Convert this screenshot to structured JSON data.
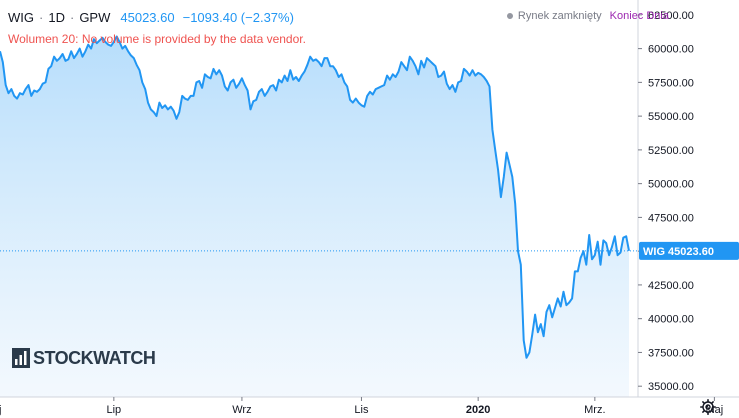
{
  "legend": {
    "symbol": "WIG",
    "interval": "1D",
    "exchange": "GPW",
    "last_value": "45023.60",
    "change": "−1093.40 (−2.37%)"
  },
  "volume_note": "Wolumen 20: No volume is provided by the data vendor.",
  "status": {
    "market": "Rynek zamknięty",
    "mode": "Koniec Dnia"
  },
  "logo": {
    "text": "STOCKWATCH"
  },
  "price_label": {
    "name": "WIG",
    "value": "45023.60"
  },
  "colors": {
    "line": "#2196f3",
    "fill_top": "#b3dcfb",
    "fill_bottom": "#eef6fd",
    "price_label_bg": "#2196f3"
  },
  "chart_data": {
    "type": "area",
    "title": "",
    "xlabel": "",
    "ylabel": "",
    "ylim": [
      34200,
      63600
    ],
    "y_ticks": [
      "35000.00",
      "37500.00",
      "40000.00",
      "42500.00",
      "45000.00",
      "47500.00",
      "50000.00",
      "52500.00",
      "55000.00",
      "57500.00",
      "60000.00",
      "62500.00"
    ],
    "x_tick_labels": [
      "aj",
      "Lip",
      "Wrz",
      "Lis",
      "2020",
      "Mrz.",
      "Maj"
    ],
    "last_value": 45023.6,
    "grid": false,
    "series": [
      {
        "values": [
          59800,
          59000,
          57300,
          56700,
          57000,
          56500,
          56300,
          56700,
          56600,
          57000,
          57300,
          56500,
          56900,
          56800,
          57000,
          57400,
          57500,
          58500,
          58700,
          59400,
          59100,
          59300,
          59600,
          59100,
          59200,
          59800,
          59300,
          59600,
          60000,
          59400,
          59800,
          60300,
          60000,
          60700,
          60400,
          60600,
          60800,
          60500,
          60300,
          60200,
          60500,
          60900,
          60500,
          60000,
          60200,
          59800,
          59500,
          59300,
          58800,
          58400,
          57500,
          57000,
          56000,
          55500,
          55300,
          55000,
          56000,
          55600,
          55800,
          55500,
          55700,
          55400,
          54800,
          55300,
          56500,
          56300,
          56200,
          56500,
          56500,
          57500,
          57600,
          57100,
          58100,
          57900,
          57800,
          58500,
          58100,
          58400,
          58000,
          57200,
          56900,
          57500,
          57700,
          57100,
          57400,
          57800,
          57300,
          56900,
          55500,
          56100,
          56200,
          56800,
          57000,
          56500,
          56800,
          57200,
          57300,
          56900,
          57700,
          57500,
          58000,
          57600,
          58400,
          57700,
          57900,
          57600,
          58000,
          58300,
          58800,
          59400,
          59100,
          59200,
          59000,
          58700,
          59300,
          59300,
          58700,
          58700,
          58400,
          57900,
          58100,
          57500,
          57200,
          56200,
          56000,
          56300,
          56000,
          55800,
          55700,
          56500,
          56800,
          56600,
          57000,
          57100,
          57200,
          57300,
          58000,
          57700,
          58100,
          57900,
          58300,
          59000,
          58700,
          58400,
          59400,
          59100,
          58700,
          58100,
          59100,
          58600,
          59300,
          59100,
          58900,
          58700,
          57900,
          58000,
          58300,
          57400,
          57000,
          57300,
          56800,
          57500,
          57600,
          58500,
          58300,
          58000,
          58400,
          58000,
          58200,
          58100,
          57900,
          57600,
          57200,
          54000,
          52500,
          51000,
          49000,
          50500,
          52300,
          51400,
          50500,
          48500,
          45000,
          44000,
          38400,
          37100,
          37500,
          38800,
          40300,
          39000,
          39600,
          38700,
          40500,
          41000,
          40100,
          40800,
          41500,
          40900,
          42000,
          41000,
          41200,
          41500,
          43500,
          43500,
          44500,
          45000,
          44000,
          46200,
          44400,
          44700,
          45700,
          44000,
          45800,
          45600,
          44700,
          45300,
          46100,
          44700,
          44900,
          46000,
          46100,
          45023.6
        ]
      }
    ]
  }
}
